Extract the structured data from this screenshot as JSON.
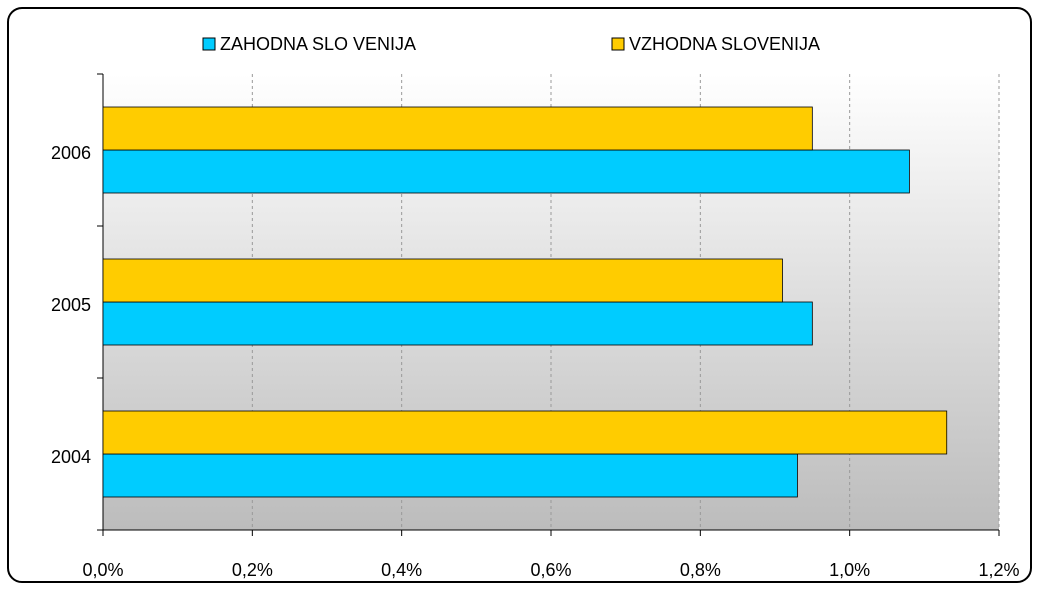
{
  "chart_data": {
    "type": "bar",
    "orientation": "horizontal",
    "categories": [
      "2004",
      "2005",
      "2006"
    ],
    "series": [
      {
        "name": "ZAHODNA SLO VENIJA",
        "color": "#00ccff",
        "values": [
          0.93,
          0.95,
          1.08
        ]
      },
      {
        "name": "VZHODNA SLOVENIJA",
        "color": "#ffcc00",
        "values": [
          1.13,
          0.91,
          0.95
        ]
      }
    ],
    "xlim": [
      0,
      1.2
    ],
    "xticks": [
      {
        "value": 0,
        "label": "0,0%"
      },
      {
        "value": 0.2,
        "label": "0,2%"
      },
      {
        "value": 0.4,
        "label": "0,4%"
      },
      {
        "value": 0.6,
        "label": "0,6%"
      },
      {
        "value": 0.8,
        "label": "0,8%"
      },
      {
        "value": 1.0,
        "label": "1,0%"
      },
      {
        "value": 1.2,
        "label": "1,2%"
      }
    ],
    "grid": true,
    "legend": "top"
  }
}
